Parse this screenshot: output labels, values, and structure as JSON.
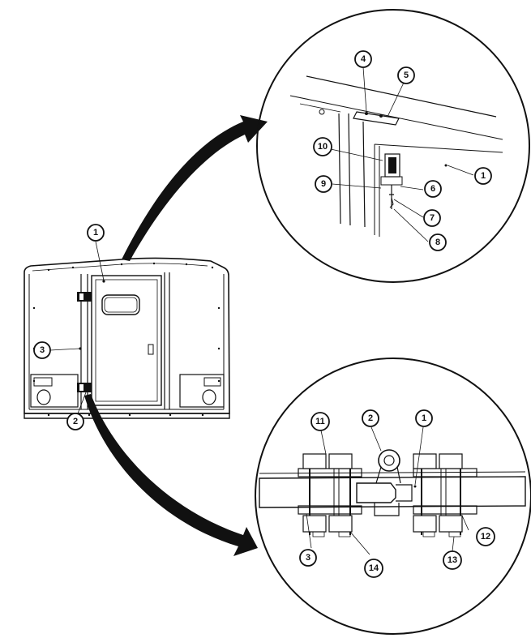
{
  "callouts": {
    "c1_rear": "1",
    "c2_rear": "2",
    "c3_rear": "3",
    "c4": "4",
    "c5": "5",
    "c10": "10",
    "c1_top": "1",
    "c9": "9",
    "c6": "6",
    "c7": "7",
    "c8": "8",
    "c11": "11",
    "c2_bot": "2",
    "c1_bot": "1",
    "c12": "12",
    "c13": "13",
    "c3_bot": "3",
    "c14": "14"
  }
}
